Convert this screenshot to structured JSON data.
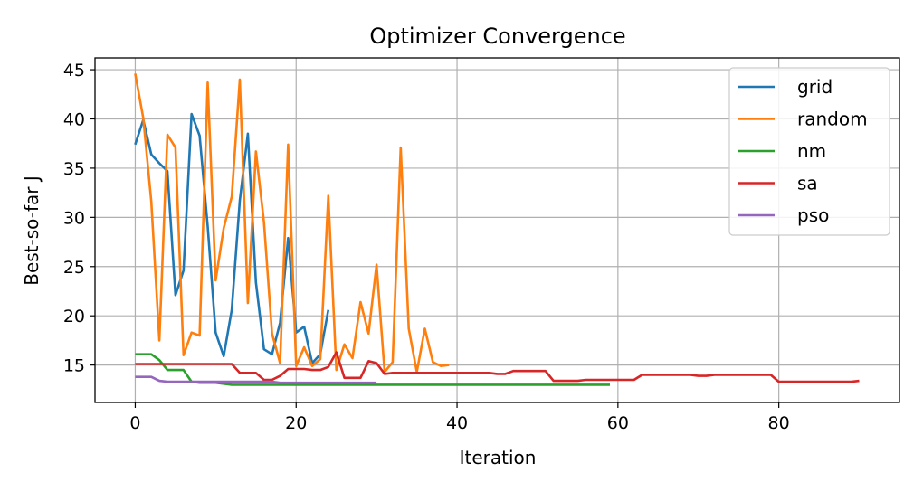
{
  "chart_data": {
    "type": "line",
    "title": "Optimizer Convergence",
    "xlabel": "Iteration",
    "ylabel": "Best-so-far J",
    "xlim": [
      -5,
      95
    ],
    "ylim": [
      11.2,
      46.2
    ],
    "xticks": [
      0,
      20,
      40,
      60,
      80
    ],
    "yticks": [
      15,
      20,
      25,
      30,
      35,
      40,
      45
    ],
    "grid": true,
    "legend_position": "upper right",
    "series": [
      {
        "name": "grid",
        "color": "#1f77b4",
        "x": [
          0,
          1,
          2,
          3,
          4,
          5,
          6,
          7,
          8,
          9,
          10,
          11,
          12,
          13,
          14,
          15,
          16,
          17,
          18,
          19,
          20,
          21,
          22,
          23,
          24
        ],
        "y": [
          37.4,
          39.9,
          36.4,
          35.5,
          34.7,
          22.1,
          24.6,
          40.5,
          38.3,
          29.1,
          18.3,
          15.9,
          20.6,
          31.7,
          38.5,
          23.4,
          16.6,
          16.1,
          19.3,
          27.9,
          18.3,
          18.9,
          15.2,
          16.1,
          20.6
        ]
      },
      {
        "name": "random",
        "color": "#ff7f0e",
        "x": [
          0,
          1,
          2,
          3,
          4,
          5,
          6,
          7,
          8,
          9,
          10,
          11,
          12,
          13,
          14,
          15,
          16,
          17,
          18,
          19,
          20,
          21,
          22,
          23,
          24,
          25,
          26,
          27,
          28,
          29,
          30,
          31,
          32,
          33,
          34,
          35,
          36,
          37,
          38,
          39
        ],
        "y": [
          44.6,
          40.1,
          31.6,
          17.5,
          38.4,
          37.1,
          16.0,
          18.3,
          18.0,
          43.7,
          23.6,
          28.9,
          32.1,
          44.0,
          21.3,
          36.7,
          29.5,
          18.2,
          15.2,
          37.4,
          14.9,
          16.8,
          14.9,
          15.6,
          32.2,
          14.5,
          17.1,
          15.7,
          21.4,
          18.2,
          25.2,
          14.3,
          15.3,
          37.1,
          18.7,
          14.3,
          18.7,
          15.3,
          14.9,
          15.0
        ]
      },
      {
        "name": "nm",
        "color": "#2ca02c",
        "x": [
          0,
          1,
          2,
          3,
          4,
          5,
          6,
          7,
          8,
          9,
          10,
          11,
          12,
          13,
          14,
          15,
          16,
          17,
          18,
          19,
          20,
          21,
          22,
          23,
          24,
          25,
          26,
          27,
          28,
          29,
          30,
          31,
          32,
          33,
          34,
          35,
          36,
          37,
          38,
          39,
          40,
          41,
          42,
          43,
          44,
          45,
          46,
          47,
          48,
          49,
          50,
          51,
          52,
          53,
          54,
          55,
          56,
          57,
          58,
          59
        ],
        "y": [
          16.1,
          16.1,
          16.1,
          15.5,
          14.5,
          14.5,
          14.5,
          13.3,
          13.2,
          13.2,
          13.2,
          13.1,
          13.0,
          13.0,
          13.0,
          13.0,
          13.0,
          13.0,
          13.0,
          13.0,
          13.0,
          13.0,
          13.0,
          13.0,
          13.0,
          13.0,
          13.0,
          13.0,
          13.0,
          13.0,
          13.0,
          13.0,
          13.0,
          13.0,
          13.0,
          13.0,
          13.0,
          13.0,
          13.0,
          13.0,
          13.0,
          13.0,
          13.0,
          13.0,
          13.0,
          13.0,
          13.0,
          13.0,
          13.0,
          13.0,
          13.0,
          13.0,
          13.0,
          13.0,
          13.0,
          13.0,
          13.0,
          13.0,
          13.0,
          13.0
        ]
      },
      {
        "name": "sa",
        "color": "#d62728",
        "x": [
          0,
          1,
          2,
          3,
          4,
          5,
          6,
          7,
          8,
          9,
          10,
          11,
          12,
          13,
          14,
          15,
          16,
          17,
          18,
          19,
          20,
          21,
          22,
          23,
          24,
          25,
          26,
          27,
          28,
          29,
          30,
          31,
          32,
          33,
          34,
          35,
          36,
          37,
          38,
          39,
          40,
          41,
          42,
          43,
          44,
          45,
          46,
          47,
          48,
          49,
          50,
          51,
          52,
          53,
          54,
          55,
          56,
          57,
          58,
          59,
          60,
          61,
          62,
          63,
          64,
          65,
          66,
          67,
          68,
          69,
          70,
          71,
          72,
          73,
          74,
          75,
          76,
          77,
          78,
          79,
          80,
          81,
          82,
          83,
          84,
          85,
          86,
          87,
          88,
          89,
          90
        ],
        "y": [
          15.1,
          15.1,
          15.1,
          15.1,
          15.1,
          15.1,
          15.1,
          15.1,
          15.1,
          15.1,
          15.1,
          15.1,
          15.1,
          14.2,
          14.2,
          14.2,
          13.5,
          13.5,
          13.9,
          14.6,
          14.6,
          14.6,
          14.5,
          14.5,
          14.8,
          16.3,
          13.7,
          13.7,
          13.7,
          15.4,
          15.2,
          14.1,
          14.2,
          14.2,
          14.2,
          14.2,
          14.2,
          14.2,
          14.2,
          14.2,
          14.2,
          14.2,
          14.2,
          14.2,
          14.2,
          14.1,
          14.1,
          14.4,
          14.4,
          14.4,
          14.4,
          14.4,
          13.4,
          13.4,
          13.4,
          13.4,
          13.5,
          13.5,
          13.5,
          13.5,
          13.5,
          13.5,
          13.5,
          14.0,
          14.0,
          14.0,
          14.0,
          14.0,
          14.0,
          14.0,
          13.9,
          13.9,
          14.0,
          14.0,
          14.0,
          14.0,
          14.0,
          14.0,
          14.0,
          14.0,
          13.3,
          13.3,
          13.3,
          13.3,
          13.3,
          13.3,
          13.3,
          13.3,
          13.3,
          13.3,
          13.4
        ]
      },
      {
        "name": "pso",
        "color": "#9467bd",
        "x": [
          0,
          1,
          2,
          3,
          4,
          5,
          6,
          7,
          8,
          9,
          10,
          11,
          12,
          13,
          14,
          15,
          16,
          17,
          18,
          19,
          20,
          21,
          22,
          23,
          24,
          25,
          26,
          27,
          28,
          29,
          30
        ],
        "y": [
          13.8,
          13.8,
          13.8,
          13.4,
          13.3,
          13.3,
          13.3,
          13.3,
          13.3,
          13.3,
          13.3,
          13.3,
          13.3,
          13.3,
          13.3,
          13.3,
          13.3,
          13.3,
          13.2,
          13.2,
          13.2,
          13.2,
          13.2,
          13.2,
          13.2,
          13.2,
          13.2,
          13.2,
          13.2,
          13.2,
          13.2
        ]
      }
    ]
  }
}
